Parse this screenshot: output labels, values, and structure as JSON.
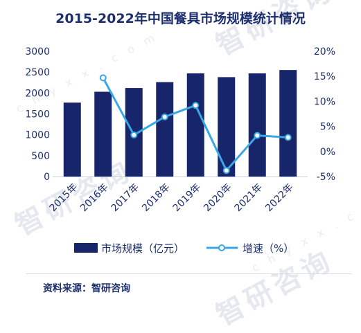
{
  "chart_data": {
    "type": "bar+line",
    "title": "2015-2022年中国餐具市场规模统计情况",
    "categories": [
      "2015年",
      "2016年",
      "2017年",
      "2018年",
      "2019年",
      "2020年",
      "2021年",
      "2022年"
    ],
    "series": [
      {
        "name": "市场规模（亿元）",
        "type": "bar",
        "axis": "left",
        "color": "#17266b",
        "values": [
          1770,
          2030,
          2120,
          2260,
          2470,
          2380,
          2470,
          2550
        ]
      },
      {
        "name": "增速（%）",
        "type": "line",
        "axis": "right",
        "color": "#3aa6e5",
        "values": [
          null,
          14.7,
          3.3,
          6.9,
          9.2,
          -3.8,
          3.2,
          2.8
        ]
      }
    ],
    "yleft": {
      "min": 0,
      "max": 3000,
      "ticks": [
        "0",
        "500",
        "1000",
        "1500",
        "2000",
        "2500",
        "3000"
      ]
    },
    "yright": {
      "min": -5,
      "max": 20,
      "ticks": [
        "-5%",
        "0%",
        "5%",
        "10%",
        "15%",
        "20%"
      ]
    },
    "legend_position": "bottom"
  },
  "source": "资料来源：智研咨询",
  "watermark": {
    "brand": "智研咨询",
    "url": "c h y x x . c o m"
  }
}
